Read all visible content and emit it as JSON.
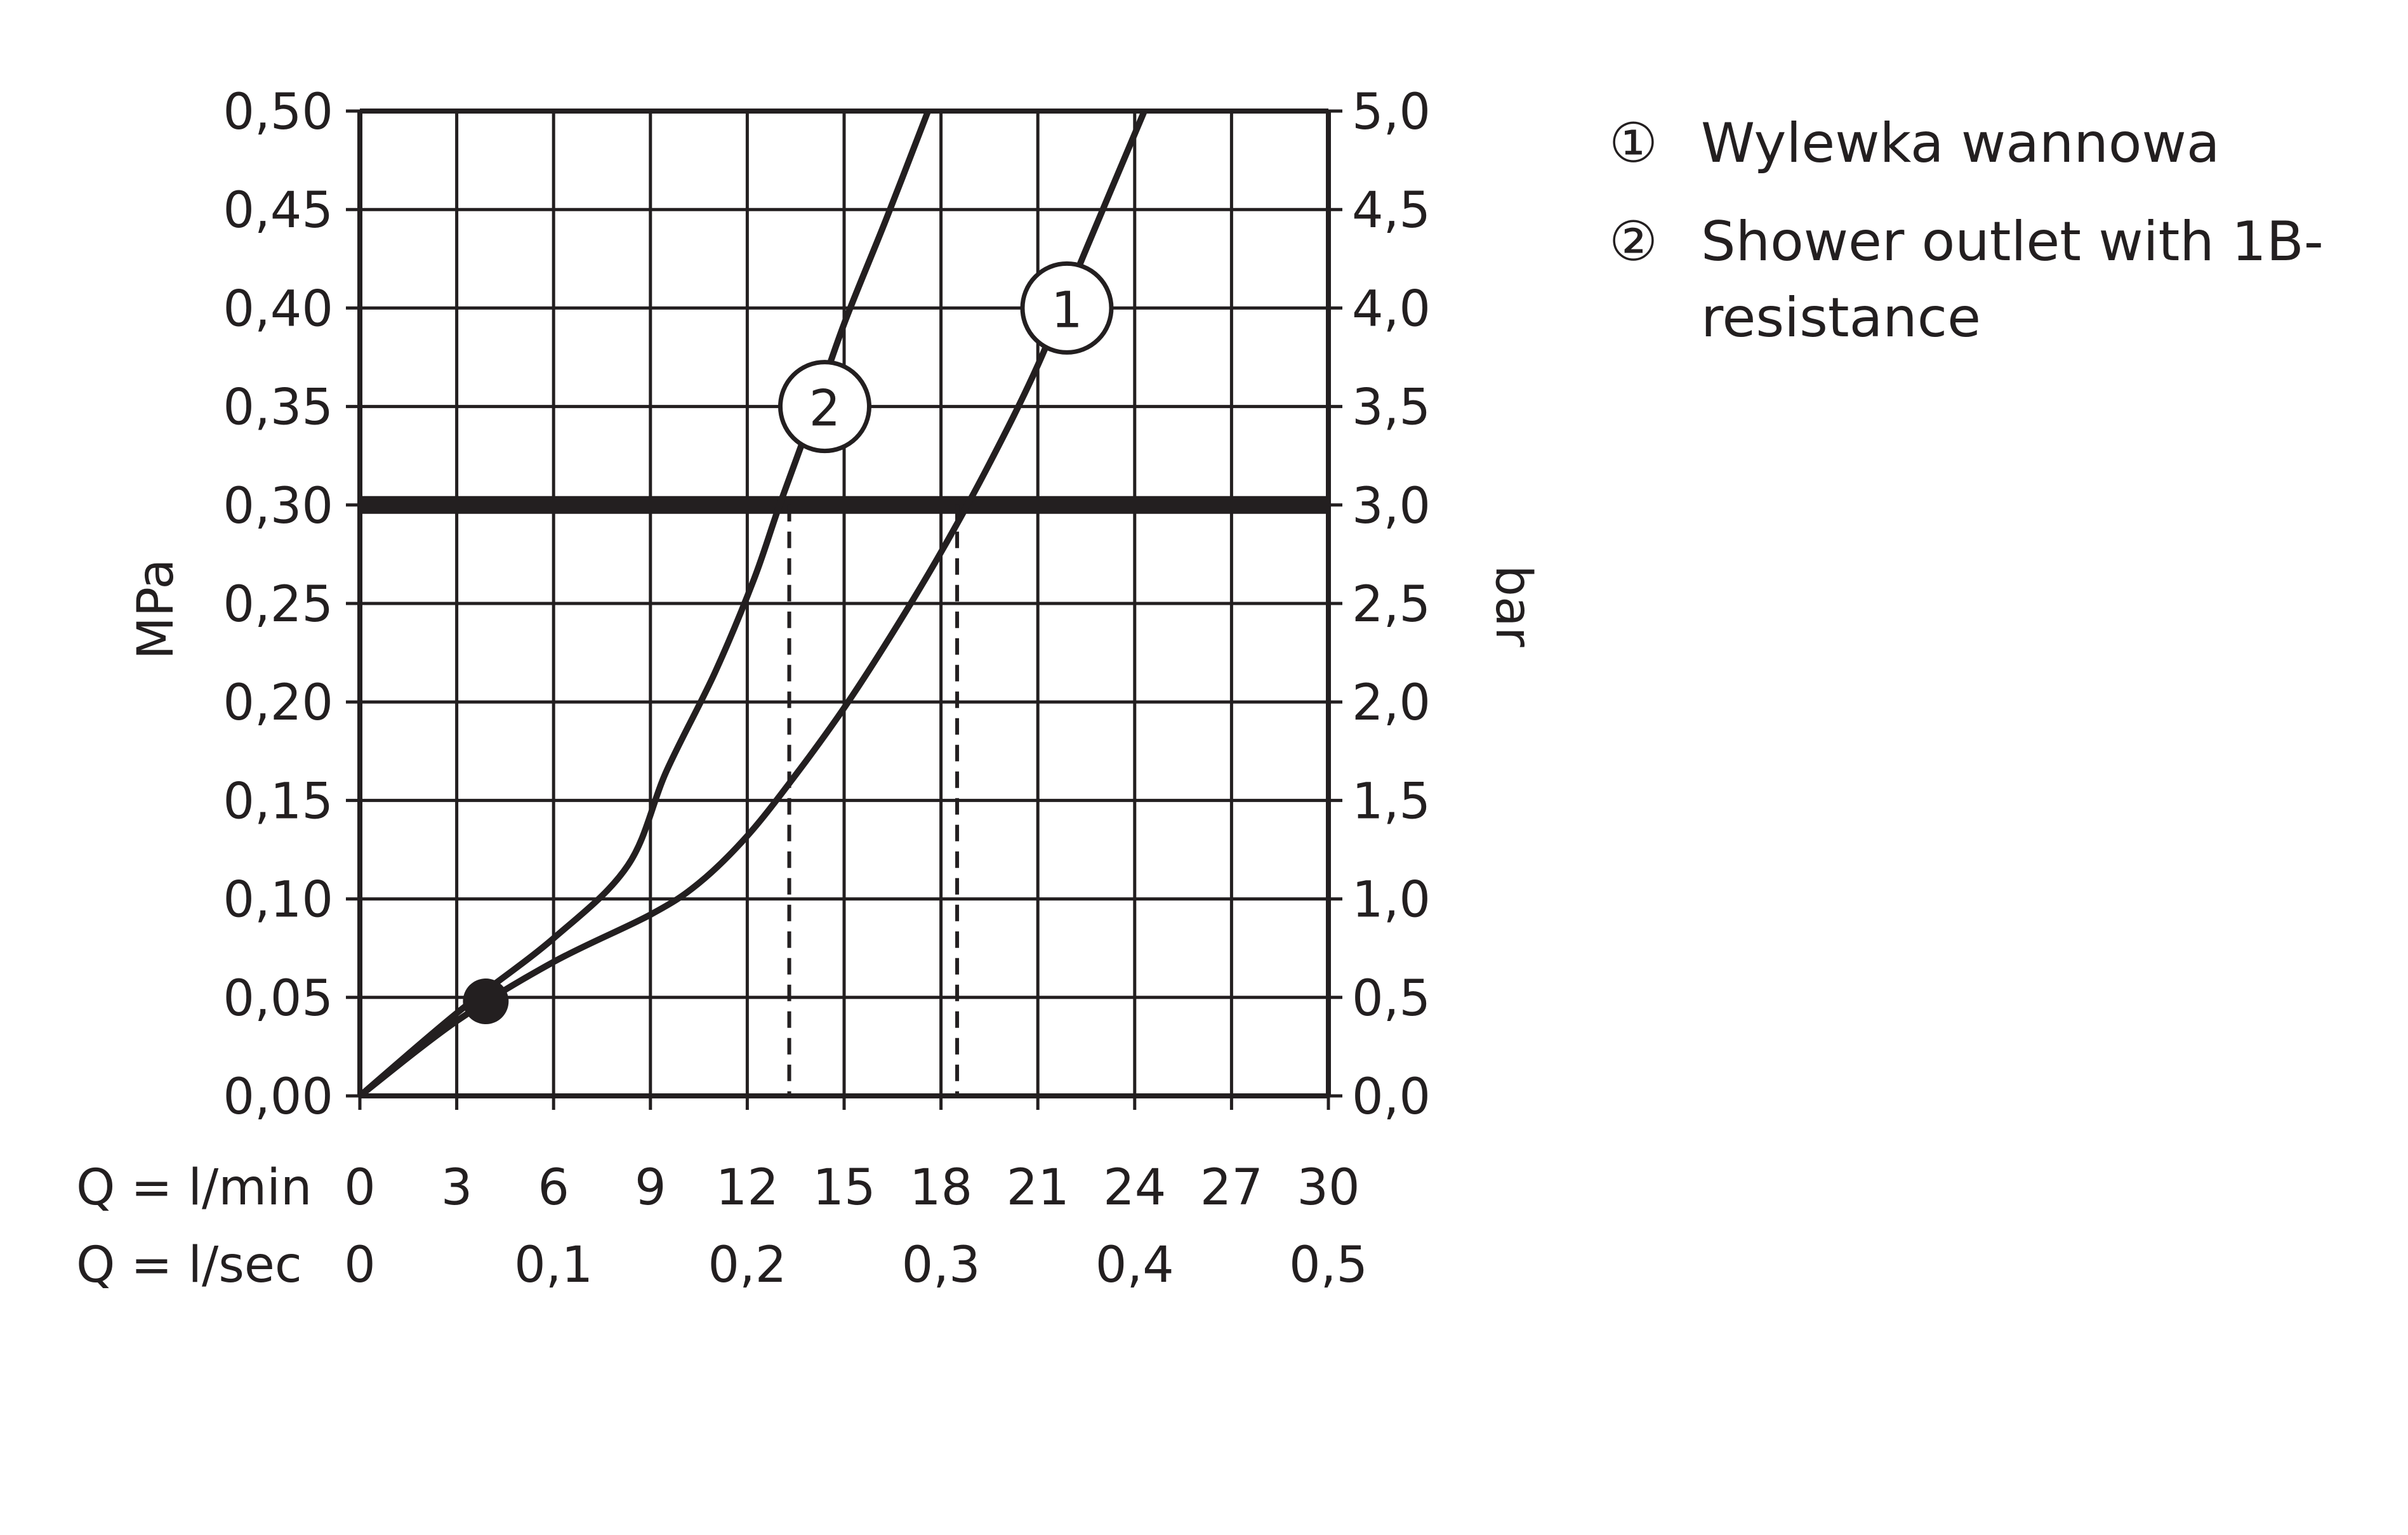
{
  "chart_data": {
    "type": "line",
    "ylabel_left": "MPa",
    "ylabel_right": "bar",
    "x_row1_label": "Q = l/min",
    "x_row2_label": "Q = l/sec",
    "x_range": [
      0,
      30
    ],
    "x_ticks_lmin": [
      "0",
      "3",
      "6",
      "9",
      "12",
      "15",
      "18",
      "21",
      "24",
      "27",
      "30"
    ],
    "x_ticks_lsec": [
      "0",
      "0,1",
      "0,2",
      "0,3",
      "0,4",
      "0,5"
    ],
    "y_range_mpa": [
      0,
      0.5
    ],
    "y_ticks_mpa": [
      "0,00",
      "0,05",
      "0,10",
      "0,15",
      "0,20",
      "0,25",
      "0,30",
      "0,35",
      "0,40",
      "0,45",
      "0,50"
    ],
    "y_ticks_bar": [
      "0,0",
      "0,5",
      "1,0",
      "1,5",
      "2,0",
      "2,5",
      "3,0",
      "3,5",
      "4,0",
      "4,5",
      "5,0"
    ],
    "grid": true,
    "reference_line_mpa": 0.3,
    "marker_point": {
      "x": 3.9,
      "y": 0.048
    },
    "series": [
      {
        "label": "1",
        "x": [
          0,
          3,
          6,
          9,
          10.5,
          12,
          13.5,
          15,
          16.5,
          18,
          19.5,
          21,
          22.5,
          24.3
        ],
        "y": [
          0,
          0.038,
          0.068,
          0.092,
          0.108,
          0.132,
          0.163,
          0.197,
          0.235,
          0.276,
          0.321,
          0.371,
          0.43,
          0.5
        ]
      },
      {
        "label": "2",
        "x": [
          0,
          3,
          6,
          8.3,
          9.5,
          11,
          12.2,
          13,
          14,
          15,
          16.3,
          17.6
        ],
        "y": [
          0,
          0.042,
          0.08,
          0.117,
          0.165,
          0.215,
          0.262,
          0.3,
          0.345,
          0.392,
          0.445,
          0.5
        ]
      }
    ],
    "series_labels_position": [
      {
        "label": "1",
        "x": 21.9,
        "y": 0.4
      },
      {
        "label": "2",
        "x": 14.4,
        "y": 0.35
      }
    ],
    "dropdown_flows_lmin": [
      13.3,
      18.5
    ]
  },
  "legend": [
    {
      "marker": "①",
      "text": "Wylewka wannowa"
    },
    {
      "marker": "②",
      "text": "Shower outlet with 1B-",
      "text2": "resistance"
    }
  ]
}
